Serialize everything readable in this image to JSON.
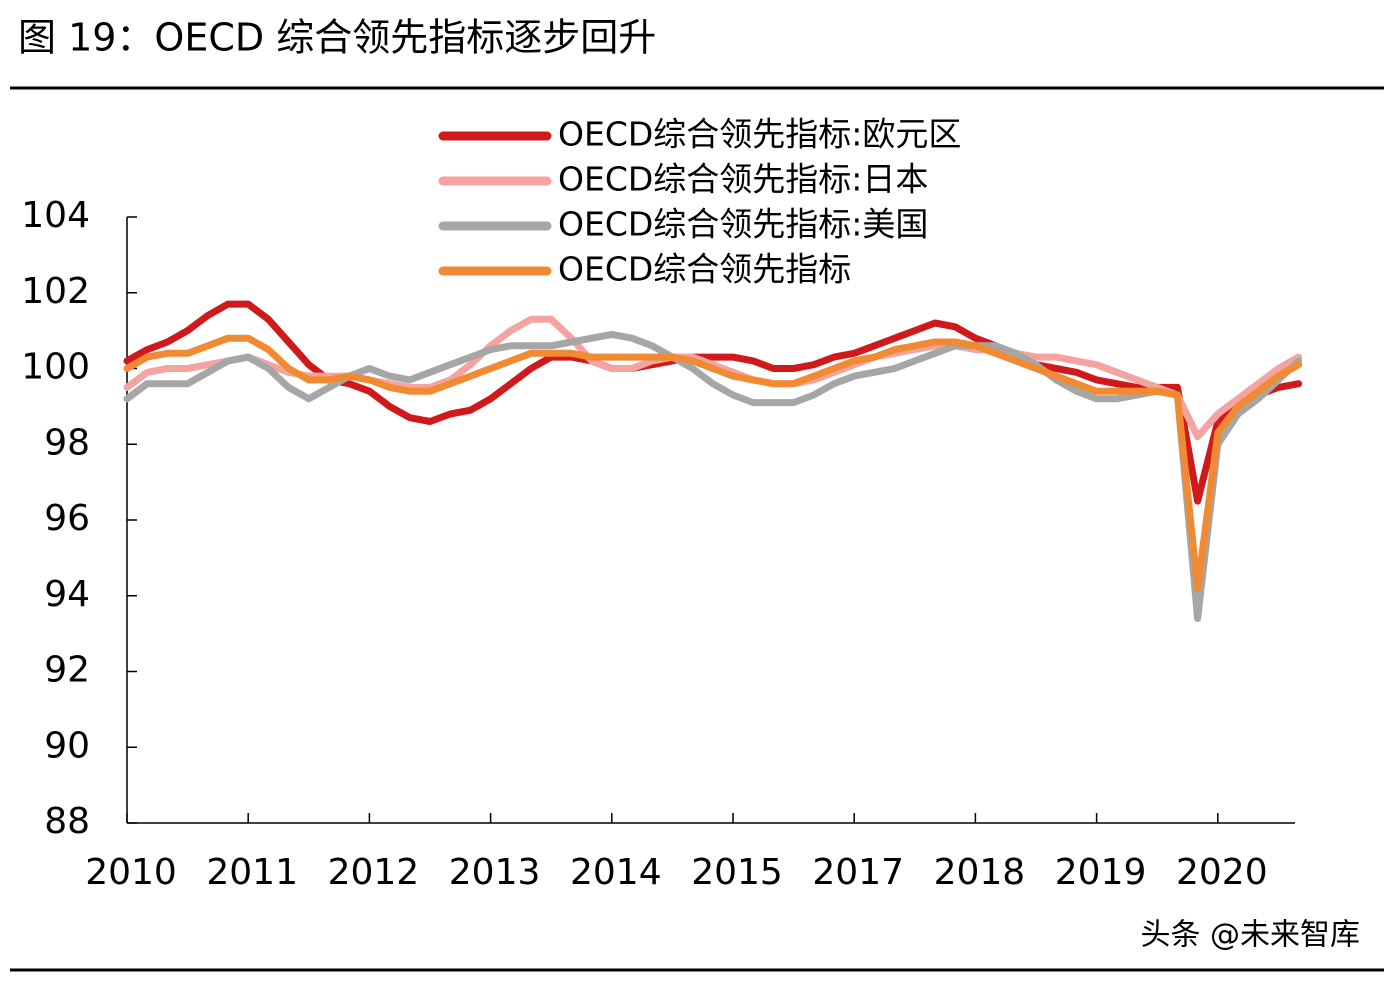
{
  "chart_data": {
    "type": "line",
    "title": "图 19：OECD 综合领先指标逐步回升",
    "watermark": "头条 @未来智库",
    "categories": [
      "2010",
      null,
      null,
      null,
      null,
      null,
      "2011",
      null,
      null,
      null,
      null,
      null,
      "2012",
      null,
      null,
      null,
      null,
      null,
      "2013",
      null,
      null,
      null,
      null,
      null,
      "2014",
      null,
      null,
      null,
      null,
      null,
      "2015",
      null,
      null,
      null,
      null,
      null,
      "2017",
      null,
      null,
      null,
      null,
      null,
      "2018",
      null,
      null,
      null,
      null,
      null,
      "2019",
      null,
      null,
      null,
      null,
      null,
      "2020",
      null,
      null,
      null,
      null
    ],
    "series": [
      {
        "name": "OECD综合领先指标:欧元区",
        "color": "#d0191a",
        "values": [
          100.2,
          100.5,
          100.7,
          101.0,
          101.4,
          101.7,
          101.7,
          101.3,
          100.7,
          100.1,
          99.7,
          99.6,
          99.4,
          99.0,
          98.7,
          98.6,
          98.8,
          98.9,
          99.2,
          99.6,
          100.0,
          100.3,
          100.3,
          100.2,
          100.0,
          100.0,
          100.1,
          100.2,
          100.3,
          100.3,
          100.3,
          100.2,
          100.0,
          100.0,
          100.1,
          100.3,
          100.4,
          100.6,
          100.8,
          101.0,
          101.2,
          101.1,
          100.8,
          100.6,
          100.3,
          100.1,
          100.0,
          99.9,
          99.7,
          99.6,
          99.5,
          99.5,
          99.5,
          96.5,
          98.6,
          99.1,
          99.3,
          99.5,
          99.6
        ]
      },
      {
        "name": "OECD综合领先指标:日本",
        "color": "#f4a3a0",
        "values": [
          99.5,
          99.9,
          100.0,
          100.0,
          100.1,
          100.2,
          100.3,
          100.1,
          99.9,
          99.8,
          99.8,
          99.8,
          99.7,
          99.6,
          99.5,
          99.5,
          99.7,
          100.1,
          100.6,
          101.0,
          101.3,
          101.3,
          100.8,
          100.2,
          100.0,
          100.0,
          100.2,
          100.3,
          100.3,
          100.1,
          99.9,
          99.7,
          99.6,
          99.6,
          99.7,
          99.9,
          100.1,
          100.3,
          100.4,
          100.5,
          100.6,
          100.6,
          100.5,
          100.5,
          100.4,
          100.3,
          100.3,
          100.2,
          100.1,
          99.9,
          99.7,
          99.5,
          99.3,
          98.2,
          98.8,
          99.2,
          99.6,
          100.0,
          100.3
        ]
      },
      {
        "name": "OECD综合领先指标:美国",
        "color": "#a6a6a6",
        "values": [
          99.2,
          99.6,
          99.6,
          99.6,
          99.9,
          100.2,
          100.3,
          100.0,
          99.5,
          99.2,
          99.5,
          99.8,
          100.0,
          99.8,
          99.7,
          99.9,
          100.1,
          100.3,
          100.5,
          100.6,
          100.6,
          100.6,
          100.7,
          100.8,
          100.9,
          100.8,
          100.6,
          100.3,
          100.0,
          99.6,
          99.3,
          99.1,
          99.1,
          99.1,
          99.3,
          99.6,
          99.8,
          99.9,
          100.0,
          100.2,
          100.4,
          100.6,
          100.6,
          100.6,
          100.4,
          100.1,
          99.7,
          99.4,
          99.2,
          99.2,
          99.3,
          99.4,
          99.3,
          93.4,
          98.0,
          98.8,
          99.2,
          99.7,
          100.2
        ]
      },
      {
        "name": "OECD综合领先指标",
        "color": "#f08a33",
        "values": [
          100.0,
          100.3,
          100.4,
          100.4,
          100.6,
          100.8,
          100.8,
          100.5,
          100.0,
          99.7,
          99.7,
          99.8,
          99.7,
          99.5,
          99.4,
          99.4,
          99.6,
          99.8,
          100.0,
          100.2,
          100.4,
          100.4,
          100.4,
          100.3,
          100.3,
          100.3,
          100.3,
          100.3,
          100.2,
          100.0,
          99.8,
          99.7,
          99.6,
          99.6,
          99.8,
          100.0,
          100.2,
          100.3,
          100.5,
          100.6,
          100.7,
          100.7,
          100.6,
          100.4,
          100.2,
          100.0,
          99.8,
          99.6,
          99.4,
          99.4,
          99.4,
          99.4,
          99.3,
          94.2,
          98.3,
          99.0,
          99.4,
          99.8,
          100.1
        ]
      }
    ],
    "ylim": [
      88,
      104
    ],
    "yticks": [
      88,
      90,
      92,
      94,
      96,
      98,
      100,
      102,
      104
    ],
    "grid": false,
    "legend": "top"
  }
}
